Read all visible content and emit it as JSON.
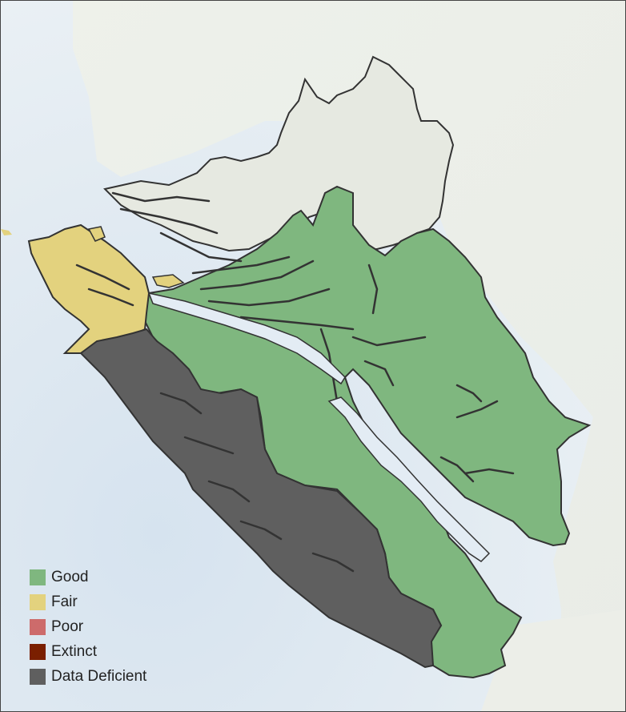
{
  "legend": {
    "items": [
      {
        "label": "Good",
        "color": "#7fb77f"
      },
      {
        "label": "Fair",
        "color": "#e3d27e"
      },
      {
        "label": "Poor",
        "color": "#cd6b6b"
      },
      {
        "label": "Extinct",
        "color": "#7a1f00"
      },
      {
        "label": "Data Deficient",
        "color": "#5f5f5f"
      }
    ]
  },
  "colors": {
    "ocean": "#e3ecf4",
    "land_background": "#eef0ea",
    "region_outline": "#333333",
    "mainland_region": "#e6e9e2"
  }
}
